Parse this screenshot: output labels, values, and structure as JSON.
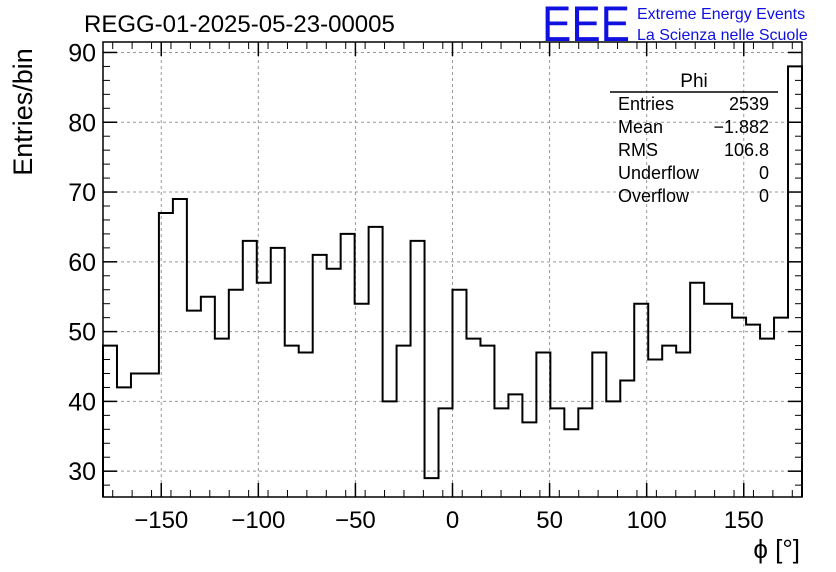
{
  "header": {
    "title": "REGG-01-2025-05-23-00005"
  },
  "logo": {
    "mark": "EEE",
    "line1": "Extreme Energy Events",
    "line2": "La Scienza nelle Scuole",
    "color": "#1010e0"
  },
  "stats": {
    "name": "Phi",
    "rows": [
      {
        "label": "Entries",
        "value": "2539"
      },
      {
        "label": "Mean",
        "value": "−1.882"
      },
      {
        "label": "RMS",
        "value": "106.8"
      },
      {
        "label": "Underflow",
        "value": "0"
      },
      {
        "label": "Overflow",
        "value": "0"
      }
    ]
  },
  "chart_data": {
    "type": "bar",
    "style": "step-histogram",
    "title": "REGG-01-2025-05-23-00005",
    "xlabel": "ϕ [°]",
    "ylabel": "Entries/bin",
    "xlim": [
      -180,
      180
    ],
    "ylim": [
      26.3,
      91.5
    ],
    "xticks": [
      -150,
      -100,
      -50,
      0,
      50,
      100,
      150
    ],
    "xtick_labels": [
      "−150",
      "−100",
      "−50",
      "0",
      "50",
      "100",
      "150"
    ],
    "yticks": [
      30,
      40,
      50,
      60,
      70,
      80,
      90
    ],
    "grid": true,
    "bin_width": 7.2,
    "bin_edges_start": -180,
    "values": [
      48,
      42,
      44,
      44,
      67,
      69,
      53,
      55,
      49,
      56,
      63,
      57,
      62,
      48,
      47,
      61,
      59,
      64,
      54,
      65,
      40,
      48,
      63,
      29,
      39,
      56,
      49,
      48,
      39,
      41,
      37,
      47,
      39,
      36,
      39,
      47,
      40,
      43,
      54,
      46,
      48,
      47,
      57,
      54,
      54,
      52,
      51,
      49,
      52,
      88
    ]
  }
}
